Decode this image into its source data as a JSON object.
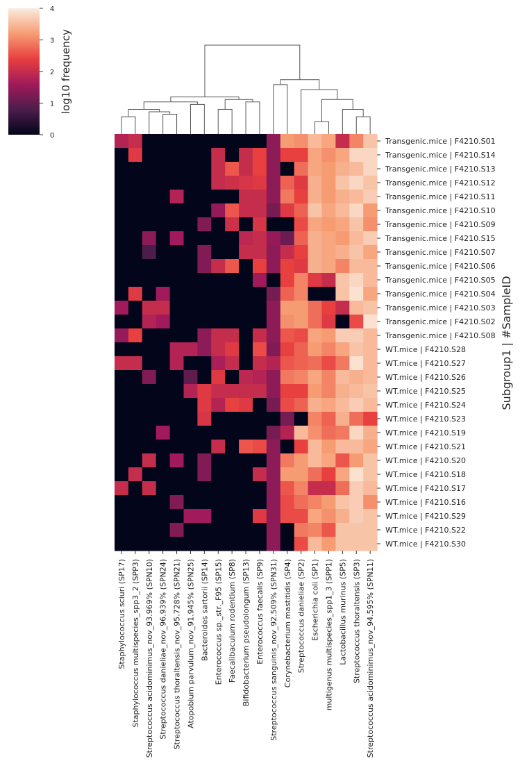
{
  "chart_data": {
    "type": "heatmap",
    "title": "",
    "ylabel": "Subgroup1 | #SampleID",
    "colorbar": {
      "label": "log10 frequency",
      "ticks": [
        0,
        1,
        2,
        3,
        4
      ],
      "range": [
        0,
        4
      ]
    },
    "colormap": [
      "#03051a",
      "#4c1d4b",
      "#a11a5b",
      "#e83f3f",
      "#f69c73",
      "#faebdd"
    ],
    "grid": false,
    "legend": "colorbar top-left",
    "columns": [
      "Staphylococcus sciuri (SP17)",
      "Staphylococcus multispecies_spp3_2 (SPP3)",
      "Streptococcus acidominimus_nov_93.969% (SPN10)",
      "Streptococcus danieliae_nov_96.939% (SPN24)",
      "Streptococcus thoraltensis_nov_95.728% (SPN21)",
      "Atopobium parvulum_nov_91.945% (SPN25)",
      "Bacteroides sartorii (SP14)",
      "Enterococcus sp._str._F95 (SP15)",
      "Faecalibaculum rodentium (SP8)",
      "Bifidobacterium pseudolongum (SP13)",
      "Enterococcus faecalis (SP9)",
      "Streptococcus sanguinis_nov_92.509% (SPN31)",
      "Corynebacterium mastitidis (SP4)",
      "Streptococcus danieliae (SP2)",
      "Escherichia coli (SP1)",
      "multigenus multispecies_spp1_3 (SPP1)",
      "Lactobacillus murinus (SP5)",
      "Streptococcus thoraltensis (SP3)",
      "Streptococcus acidominimus_nov_94.595% (SPN11)"
    ],
    "rows": [
      "Transgenic.mice | F4210.S01",
      "Transgenic.mice | F4210.S14",
      "Transgenic.mice | F4210.S13",
      "Transgenic.mice | F4210.S12",
      "Transgenic.mice | F4210.S11",
      "Transgenic.mice | F4210.S10",
      "Transgenic.mice | F4210.S09",
      "Transgenic.mice | F4210.S15",
      "Transgenic.mice | F4210.S07",
      "Transgenic.mice | F4210.S06",
      "Transgenic.mice | F4210.S05",
      "Transgenic.mice | F4210.S04",
      "Transgenic.mice | F4210.S03",
      "Transgenic.mice | F4210.S02",
      "Transgenic.mice | F4210.S08",
      "WT.mice | F4210.S28",
      "WT.mice | F4210.S27",
      "WT.mice | F4210.S26",
      "WT.mice | F4210.S25",
      "WT.mice | F4210.S24",
      "WT.mice | F4210.S23",
      "WT.mice | F4210.S19",
      "WT.mice | F4210.S21",
      "WT.mice | F4210.S20",
      "WT.mice | F4210.S18",
      "WT.mice | F4210.S17",
      "WT.mice | F4210.S16",
      "WT.mice | F4210.S29",
      "WT.mice | F4210.S22",
      "WT.mice | F4210.S30"
    ],
    "values": [
      [
        1.8,
        2.0,
        0,
        0,
        0,
        0,
        0,
        0,
        0,
        0,
        0,
        1.4,
        3.2,
        3.1,
        3.5,
        3.3,
        2.0,
        3.0,
        3.6
      ],
      [
        0,
        2.3,
        0,
        0,
        0,
        0,
        0,
        2.0,
        0,
        2.0,
        2.4,
        1.4,
        2.4,
        2.4,
        3.3,
        3.1,
        3.3,
        3.8,
        3.8
      ],
      [
        0,
        0,
        0,
        0,
        0,
        0,
        0,
        2.0,
        2.6,
        2.0,
        2.4,
        1.4,
        0,
        2.8,
        3.3,
        3.2,
        3.4,
        3.5,
        3.8
      ],
      [
        0,
        0,
        0,
        0,
        0,
        0,
        0,
        2.0,
        2.1,
        2.2,
        2.3,
        1.4,
        2.7,
        2.3,
        3.4,
        3.2,
        3.6,
        3.8,
        3.6
      ],
      [
        0,
        0,
        0,
        0,
        1.8,
        0,
        0,
        0,
        0,
        2.0,
        2.0,
        1.4,
        2.9,
        2.4,
        3.4,
        3.2,
        3.4,
        3.5,
        3.7
      ],
      [
        0,
        0,
        0,
        0,
        0,
        0,
        0,
        1.5,
        2.6,
        2.0,
        2.0,
        1.2,
        2.3,
        2.7,
        3.6,
        3.3,
        3.5,
        3.8,
        3.2
      ],
      [
        0,
        0,
        0,
        0,
        0,
        0,
        1.3,
        0,
        2.1,
        0,
        2.2,
        0,
        0,
        2.5,
        3.3,
        3.2,
        3.3,
        3.6,
        3.1
      ],
      [
        0,
        0,
        1.4,
        0,
        1.6,
        0,
        0,
        0,
        0,
        1.9,
        2.0,
        1.5,
        1.1,
        2.7,
        3.4,
        3.3,
        3.2,
        3.5,
        3.7
      ],
      [
        0,
        0,
        0.8,
        0,
        0,
        0,
        1.3,
        0,
        0,
        2.0,
        2.0,
        1.4,
        2.0,
        2.4,
        3.4,
        3.3,
        3.4,
        3.6,
        3.3
      ],
      [
        0,
        0,
        0,
        0,
        0,
        0,
        1.3,
        2.0,
        2.6,
        0,
        2.4,
        1.4,
        2.4,
        2.3,
        3.4,
        3.3,
        3.0,
        3.5,
        3.5
      ],
      [
        0,
        0,
        0,
        0,
        0,
        0,
        0,
        0,
        0,
        0,
        1.6,
        0,
        2.4,
        3.0,
        2.3,
        2.0,
        3.6,
        3.8,
        3.5
      ],
      [
        0,
        2.3,
        0,
        1.6,
        0,
        0,
        0,
        0,
        0,
        0,
        0,
        1.2,
        2.7,
        3.0,
        0,
        0,
        3.6,
        3.9,
        3.3
      ],
      [
        1.6,
        0,
        2.0,
        2.0,
        0,
        0,
        0,
        0,
        0,
        0,
        0,
        1.4,
        3.2,
        3.2,
        2.8,
        2.4,
        2.0,
        3.5,
        3.6
      ],
      [
        0,
        0,
        1.8,
        1.6,
        0,
        0,
        0,
        0,
        0,
        0,
        0,
        1.4,
        3.1,
        3.2,
        2.8,
        2.3,
        0,
        2.5,
        3.9
      ],
      [
        1.5,
        2.4,
        0,
        0,
        0,
        0,
        1.4,
        2.0,
        2.0,
        0,
        2.0,
        1.4,
        2.6,
        2.5,
        3.3,
        3.2,
        3.7,
        3.7,
        3.5
      ],
      [
        0,
        0,
        0,
        0,
        1.8,
        1.8,
        1.4,
        2.0,
        2.3,
        0,
        2.5,
        1.3,
        2.4,
        2.7,
        3.2,
        3.0,
        3.3,
        3.6,
        3.5
      ],
      [
        2.0,
        2.0,
        0,
        0,
        1.8,
        0,
        0,
        1.7,
        2.0,
        0,
        2.0,
        1.8,
        2.6,
        2.7,
        2.8,
        2.5,
        2.9,
        3.9,
        3.5
      ],
      [
        0,
        0,
        1.3,
        0,
        0,
        1.0,
        0,
        2.3,
        0,
        1.9,
        1.8,
        1.4,
        2.9,
        3.0,
        3.3,
        3.0,
        3.5,
        3.4,
        3.5
      ],
      [
        0,
        0,
        0,
        0,
        0,
        1.8,
        2.3,
        2.0,
        2.0,
        2.0,
        2.0,
        1.4,
        2.4,
        2.4,
        3.2,
        3.0,
        3.4,
        3.5,
        3.6
      ],
      [
        0,
        0,
        0,
        0,
        0,
        0,
        2.3,
        1.8,
        2.4,
        2.3,
        0,
        1.2,
        2.5,
        2.7,
        3.4,
        3.3,
        3.5,
        3.7,
        3.5
      ],
      [
        0,
        0,
        0,
        0,
        0,
        0,
        2.2,
        0,
        0,
        0,
        0,
        0,
        1.2,
        0,
        3.0,
        2.7,
        3.4,
        2.8,
        2.4
      ],
      [
        0,
        0,
        0,
        1.6,
        0,
        0,
        0,
        0,
        0,
        0,
        0,
        1.2,
        1.8,
        3.5,
        3.1,
        2.8,
        2.9,
        3.8,
        3.4
      ],
      [
        0,
        0,
        0,
        0,
        0,
        0,
        0,
        2.0,
        0,
        2.6,
        2.5,
        1.4,
        0,
        2.4,
        3.5,
        3.2,
        3.5,
        3.5,
        3.3
      ],
      [
        0,
        0,
        2.0,
        0,
        1.6,
        0,
        1.3,
        0,
        0,
        0,
        0,
        1.4,
        2.9,
        3.2,
        3.5,
        3.3,
        2.6,
        3.2,
        3.6
      ],
      [
        0,
        2.0,
        0,
        0,
        0,
        0,
        1.3,
        0,
        0,
        0,
        2.0,
        1.4,
        3.2,
        3.2,
        2.8,
        2.4,
        3.3,
        3.9,
        3.6
      ],
      [
        2.0,
        0,
        2.0,
        0,
        0,
        0,
        0,
        0,
        0,
        0,
        0,
        1.4,
        2.6,
        3.0,
        2.0,
        2.0,
        2.8,
        3.7,
        3.5
      ],
      [
        0,
        0,
        0,
        0,
        1.3,
        0,
        0,
        0,
        0,
        0,
        0,
        1.4,
        2.5,
        2.8,
        3.0,
        3.2,
        3.6,
        3.7,
        3.1
      ],
      [
        0,
        0,
        0,
        0,
        0,
        1.6,
        1.6,
        0,
        0,
        0,
        2.3,
        1.4,
        2.5,
        2.5,
        3.3,
        3.1,
        3.4,
        3.7,
        3.6
      ],
      [
        0,
        0,
        0,
        0,
        1.3,
        0,
        0,
        0,
        0,
        0,
        0,
        1.4,
        0,
        2.9,
        3.0,
        2.6,
        3.6,
        3.6,
        3.6
      ],
      [
        0,
        0,
        0,
        0,
        0,
        0,
        0,
        0,
        0,
        0,
        0,
        1.4,
        0,
        2.5,
        3.5,
        3.2,
        3.6,
        3.6,
        3.6
      ]
    ],
    "dendrogram": {
      "leaves": 19,
      "merges": [
        [
          0,
          1,
          0.7
        ],
        [
          3,
          4,
          0.8
        ],
        [
          2,
          -2,
          0.9
        ],
        [
          -1,
          -3,
          1.0
        ],
        [
          5,
          6,
          1.2
        ],
        [
          -4,
          -5,
          1.3
        ],
        [
          7,
          8,
          1.0
        ],
        [
          9,
          10,
          1.3
        ],
        [
          -7,
          -8,
          1.4
        ],
        [
          -6,
          -9,
          1.5
        ],
        [
          14,
          15,
          0.5
        ],
        [
          17,
          18,
          0.7
        ],
        [
          16,
          -12,
          1.0
        ],
        [
          -11,
          -13,
          1.4
        ],
        [
          13,
          -14,
          1.8
        ],
        [
          11,
          12,
          2.0
        ],
        [
          -16,
          -15,
          2.2
        ],
        [
          -10,
          -17,
          3.6
        ]
      ]
    }
  }
}
